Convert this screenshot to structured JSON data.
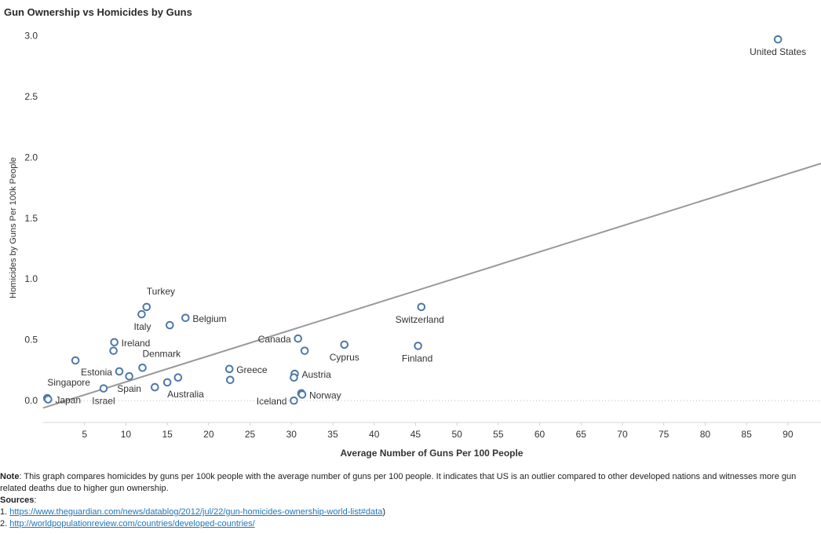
{
  "title": "Gun Ownership vs Homicides by Guns",
  "chart_data": {
    "type": "scatter",
    "title": "Gun Ownership vs Homicides by Guns",
    "xlabel": "Average Number of Guns Per 100 People",
    "ylabel": "Homicides by Guns Per 100k People",
    "xlim": [
      0,
      94
    ],
    "ylim": [
      -0.18,
      3.1
    ],
    "xticks": [
      5,
      10,
      15,
      20,
      25,
      30,
      35,
      40,
      45,
      50,
      55,
      60,
      65,
      70,
      75,
      80,
      85,
      90
    ],
    "xtick_labels": [
      "5",
      "10",
      "15",
      "20",
      "25",
      "30",
      "35",
      "40",
      "45",
      "50",
      "55",
      "60",
      "65",
      "70",
      "75",
      "80",
      "85",
      "90"
    ],
    "yticks": [
      0.0,
      0.5,
      1.0,
      1.5,
      2.0,
      2.5,
      3.0
    ],
    "ytick_labels": [
      "0.0",
      "0.5",
      "1.0",
      "1.5",
      "2.0",
      "2.5",
      "3.0"
    ],
    "trend_line": {
      "x": [
        0,
        94
      ],
      "y": [
        -0.06,
        1.95
      ]
    },
    "zero_line": true,
    "grid": false,
    "marker_color": "#4e79a7",
    "trend_color": "#999999",
    "points": [
      {
        "x": 88.8,
        "y": 2.97,
        "label": "United States",
        "anchor": "middle",
        "dx": 0,
        "dy": 20
      },
      {
        "x": 45.7,
        "y": 0.77,
        "label": "Switzerland",
        "anchor": "middle",
        "dx": -2,
        "dy": 20
      },
      {
        "x": 45.3,
        "y": 0.45,
        "label": "Finland",
        "anchor": "middle",
        "dx": -1,
        "dy": 20
      },
      {
        "x": 36.4,
        "y": 0.46,
        "label": "Cyprus",
        "anchor": "middle",
        "dx": 0,
        "dy": 20
      },
      {
        "x": 30.8,
        "y": 0.51,
        "label": "Canada",
        "anchor": "end",
        "dx": -9,
        "dy": 5
      },
      {
        "x": 31.6,
        "y": 0.41,
        "label": "",
        "anchor": "start",
        "dx": 0,
        "dy": 0
      },
      {
        "x": 30.4,
        "y": 0.22,
        "label": "Austria",
        "anchor": "start",
        "dx": 9,
        "dy": 5
      },
      {
        "x": 30.3,
        "y": 0.19,
        "label": "",
        "anchor": "start",
        "dx": 0,
        "dy": 0
      },
      {
        "x": 31.2,
        "y": 0.06,
        "label": "",
        "anchor": "start",
        "dx": 0,
        "dy": 0
      },
      {
        "x": 31.3,
        "y": 0.05,
        "label": "Norway",
        "anchor": "start",
        "dx": 9,
        "dy": 5
      },
      {
        "x": 30.3,
        "y": 0.0,
        "label": "Iceland",
        "anchor": "end",
        "dx": -9,
        "dy": 5
      },
      {
        "x": 22.5,
        "y": 0.26,
        "label": "Greece",
        "anchor": "start",
        "dx": 9,
        "dy": 5
      },
      {
        "x": 22.6,
        "y": 0.17,
        "label": "",
        "anchor": "start",
        "dx": 0,
        "dy": 0
      },
      {
        "x": 17.2,
        "y": 0.68,
        "label": "Belgium",
        "anchor": "start",
        "dx": 9,
        "dy": 5
      },
      {
        "x": 15.3,
        "y": 0.62,
        "label": "",
        "anchor": "start",
        "dx": 0,
        "dy": 0
      },
      {
        "x": 12.5,
        "y": 0.77,
        "label": "Turkey",
        "anchor": "start",
        "dx": 0,
        "dy": -16
      },
      {
        "x": 11.9,
        "y": 0.71,
        "label": "Italy",
        "anchor": "end",
        "dx": 12,
        "dy": 20
      },
      {
        "x": 12.0,
        "y": 0.27,
        "label": "Denmark",
        "anchor": "start",
        "dx": 0,
        "dy": -14
      },
      {
        "x": 16.3,
        "y": 0.19,
        "label": "",
        "anchor": "start",
        "dx": 0,
        "dy": 0
      },
      {
        "x": 15.0,
        "y": 0.15,
        "label": "Australia",
        "anchor": "start",
        "dx": 0,
        "dy": 19
      },
      {
        "x": 13.5,
        "y": 0.11,
        "label": "",
        "anchor": "start",
        "dx": 0,
        "dy": 0
      },
      {
        "x": 8.6,
        "y": 0.48,
        "label": "Ireland",
        "anchor": "start",
        "dx": 9,
        "dy": 5
      },
      {
        "x": 8.5,
        "y": 0.41,
        "label": "",
        "anchor": "start",
        "dx": 0,
        "dy": 0
      },
      {
        "x": 3.9,
        "y": 0.33,
        "label": "",
        "anchor": "start",
        "dx": 0,
        "dy": 0
      },
      {
        "x": 9.2,
        "y": 0.24,
        "label": "Estonia",
        "anchor": "end",
        "dx": -9,
        "dy": 5
      },
      {
        "x": 10.4,
        "y": 0.2,
        "label": "Spain",
        "anchor": "middle",
        "dx": 0,
        "dy": 20
      },
      {
        "x": 7.3,
        "y": 0.1,
        "label": "Israel",
        "anchor": "middle",
        "dx": 0,
        "dy": 20
      },
      {
        "x": 0.5,
        "y": 0.02,
        "label": "Singapore",
        "anchor": "start",
        "dx": 0,
        "dy": -16
      },
      {
        "x": 0.6,
        "y": 0.01,
        "label": "Japan",
        "anchor": "start",
        "dx": 9,
        "dy": 5
      }
    ]
  },
  "note": {
    "label": "Note",
    "text": ": This graph compares homicides by guns per 100k people with the average number of guns per 100 people. It indicates that US is an outlier compared to other developed nations and witnesses more gun related deaths due to higher gun ownership.",
    "sources_label": "Sources",
    "sources_suffix": ":",
    "source_1_prefix": "1. ",
    "source_1_url": "https://www.theguardian.com/news/datablog/2012/jul/22/gun-homicides-ownership-world-list#data",
    "source_1_suffix": ")",
    "source_2_prefix": "2. ",
    "source_2_url": "http://worldpopulationreview.com/countries/developed-countries/"
  }
}
